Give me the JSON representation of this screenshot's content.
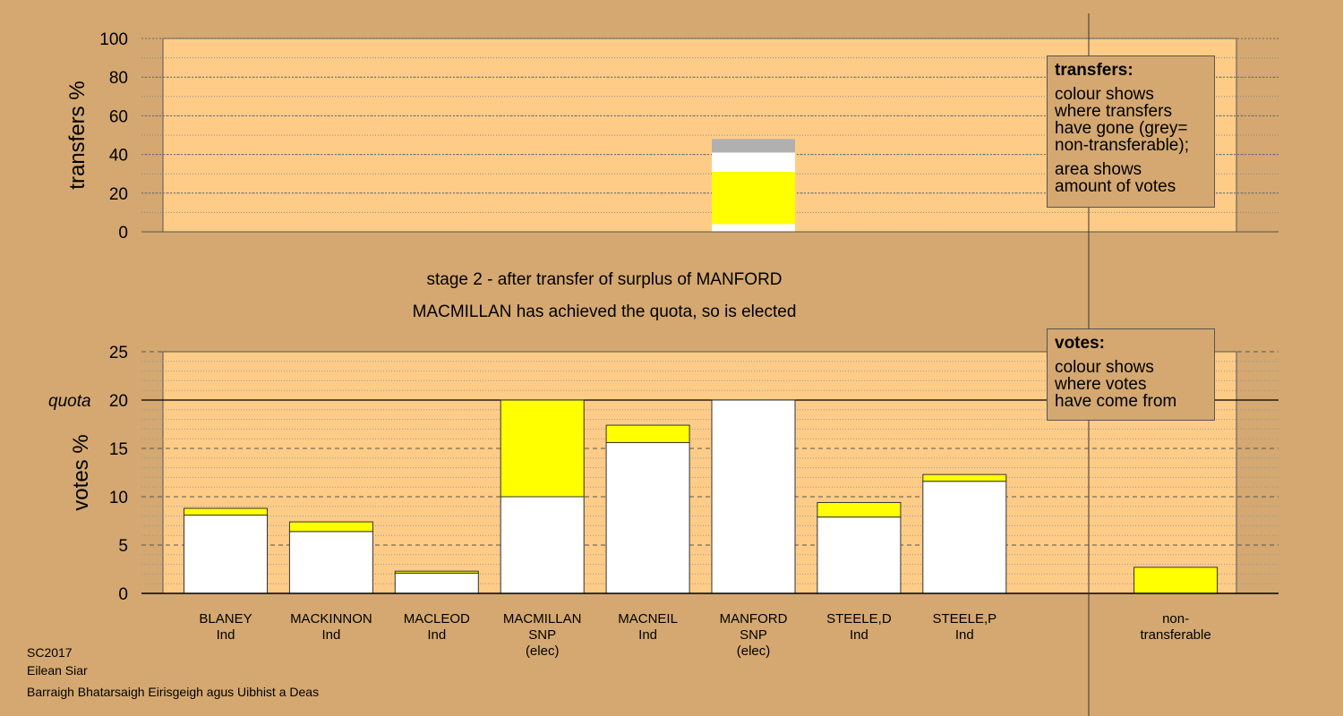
{
  "chart_data": [
    {
      "type": "bar",
      "stacked": true,
      "ylabel": "transfers %",
      "ylim": [
        0,
        100
      ],
      "yticks": [
        0,
        20,
        40,
        60,
        80,
        100
      ],
      "grid": "dotted",
      "bars": [
        {
          "category": "MANFORD",
          "segments": [
            {
              "from": 0,
              "to": 4,
              "color": "#ffffff"
            },
            {
              "from": 4,
              "to": 31,
              "color": "#ffff00"
            },
            {
              "from": 31,
              "to": 41,
              "color": "#ffffff"
            },
            {
              "from": 41,
              "to": 48,
              "color": "#b0b0b0"
            }
          ]
        }
      ]
    },
    {
      "type": "bar",
      "stacked": true,
      "ylabel": "votes %",
      "ylim": [
        0,
        25
      ],
      "yticks": [
        0,
        5,
        10,
        15,
        20,
        25
      ],
      "quota": 20,
      "quota_label": "quota",
      "grid": "dashed",
      "categories": [
        {
          "name": "BLANEY",
          "party": "Ind",
          "note": ""
        },
        {
          "name": "MACKINNON",
          "party": "Ind",
          "note": ""
        },
        {
          "name": "MACLEOD",
          "party": "Ind",
          "note": ""
        },
        {
          "name": "MACMILLAN",
          "party": "SNP",
          "note": "(elec)"
        },
        {
          "name": "MACNEIL",
          "party": "Ind",
          "note": ""
        },
        {
          "name": "MANFORD",
          "party": "SNP",
          "note": "(elec)"
        },
        {
          "name": "STEELE,D",
          "party": "Ind",
          "note": ""
        },
        {
          "name": "STEELE,P",
          "party": "Ind",
          "note": ""
        },
        {
          "name": "",
          "party": "",
          "note": ""
        },
        {
          "name": "non-",
          "party": "transferable",
          "note": ""
        }
      ],
      "series": [
        {
          "values": [
            8.1,
            6.4,
            2.1,
            10.0,
            15.6,
            20.0,
            7.9,
            11.6,
            0,
            0
          ]
        },
        {
          "values": [
            0.7,
            1.0,
            0.2,
            10.0,
            1.8,
            0,
            1.5,
            0.7,
            0,
            2.7
          ]
        }
      ]
    }
  ],
  "stage_title": "stage 2 - after transfer of surplus of MANFORD",
  "stage_result": "MACMILLAN has achieved the quota, so is elected",
  "legend_transfers": {
    "title": "transfers:",
    "lines1": [
      "colour shows",
      "where transfers",
      "have gone (grey=",
      "non-transferable);"
    ],
    "lines2": [
      "area shows",
      "amount of votes"
    ]
  },
  "legend_votes": {
    "title": "votes:",
    "lines": [
      "colour shows",
      "where votes",
      "have come from"
    ]
  },
  "footer": [
    "SC2017",
    "Eilean Siar",
    "Barraigh Bhatarsaigh Eirisgeigh agus Uibhist a Deas"
  ],
  "colors": {
    "background": "#d4a870",
    "plot": "#ffcc88",
    "own": "#ffffff",
    "snp": "#ffff00",
    "nontransferable": "#b0b0b0"
  }
}
